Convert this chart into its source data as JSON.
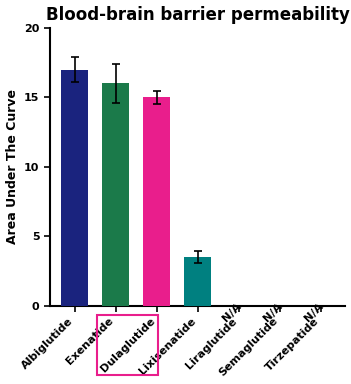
{
  "title": "Blood-brain barrier permeability",
  "ylabel": "Area Under The Curve",
  "ylim": [
    0,
    20
  ],
  "yticks": [
    0,
    5,
    10,
    15,
    20
  ],
  "categories": [
    "Albiglutide",
    "Exenatide",
    "Dulaglutide",
    "Lixisenatide",
    "Liraglutide",
    "Semaglutide",
    "Tirzepatide"
  ],
  "values": [
    17.0,
    16.0,
    15.0,
    3.5,
    null,
    null,
    null
  ],
  "errors": [
    0.9,
    1.4,
    0.45,
    0.4,
    null,
    null,
    null
  ],
  "bar_colors": [
    "#1a237e",
    "#1b7a4a",
    "#e91e8c",
    "#008080",
    null,
    null,
    null
  ],
  "na_labels": [
    false,
    false,
    false,
    false,
    true,
    true,
    true
  ],
  "boxed_label_index": 2,
  "box_color": "#e91e8c",
  "title_fontsize": 12,
  "axis_label_fontsize": 9,
  "tick_fontsize": 8,
  "bar_width": 0.65,
  "na_rotation": 45
}
